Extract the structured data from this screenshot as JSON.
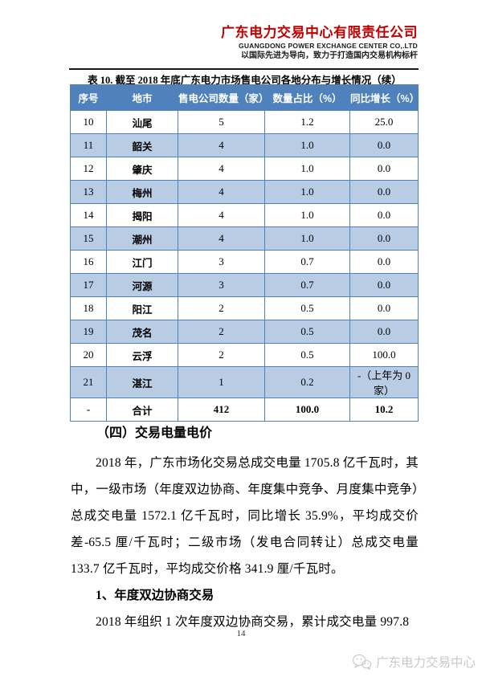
{
  "letterhead": {
    "company_cn": "广东电力交易中心有限责任公司",
    "company_en": "GUANGDONG POWER EXCHANGE CENTER CO,.LTD",
    "tagline": "以国际先进为导向，致力于打造国内交易机构标杆",
    "brand_color": "#c00000"
  },
  "table": {
    "title": "表 10. 截至 2018 年底广东电力市场售电公司各地分布与增长情况（续）",
    "headers": [
      "序号",
      "地市",
      "售电公司数量（家）",
      "数量占比（%）",
      "同比增长（%）"
    ],
    "rows": [
      [
        "10",
        "汕尾",
        "5",
        "1.2",
        "25.0"
      ],
      [
        "11",
        "韶关",
        "4",
        "1.0",
        "0.0"
      ],
      [
        "12",
        "肇庆",
        "4",
        "1.0",
        "0.0"
      ],
      [
        "13",
        "梅州",
        "4",
        "1.0",
        "0.0"
      ],
      [
        "14",
        "揭阳",
        "4",
        "1.0",
        "0.0"
      ],
      [
        "15",
        "潮州",
        "4",
        "1.0",
        "0.0"
      ],
      [
        "16",
        "江门",
        "3",
        "0.7",
        "0.0"
      ],
      [
        "17",
        "河源",
        "3",
        "0.7",
        "0.0"
      ],
      [
        "18",
        "阳江",
        "2",
        "0.5",
        "0.0"
      ],
      [
        "19",
        "茂名",
        "2",
        "0.5",
        "0.0"
      ],
      [
        "20",
        "云浮",
        "2",
        "0.5",
        "100.0"
      ],
      [
        "21",
        "湛江",
        "1",
        "0.2",
        "-（上年为 0 家）"
      ]
    ],
    "total_row": [
      "-",
      "合计",
      "412",
      "100.0",
      "10.2"
    ],
    "colors": {
      "header_bg": "#4f81bd",
      "alt_row_bg": "#b8cce4",
      "border": "#4f81bd"
    }
  },
  "content": {
    "section_heading": "（四）交易电量电价",
    "paragraph1": "2018 年，广东市场化交易总成交电量 1705.8 亿千瓦时，其中，一级市场（年度双边协商、年度集中竞争、月度集中竞争）总成交电量 1572.1 亿千瓦时，同比增长 35.9%，平均成交价差-65.5 厘/千瓦时；二级市场（发电合同转让）总成交电量 133.7 亿千瓦时，平均成交价格 341.9 厘/千瓦时。",
    "sub_heading": "1、年度双边协商交易",
    "paragraph2": "2018 年组织 1 次年度双边协商交易，累计成交电量 997.8"
  },
  "footer": {
    "page_number": "14",
    "watermark_text": "广东电力交易中心",
    "watermark_color": "#c8c8c8"
  }
}
